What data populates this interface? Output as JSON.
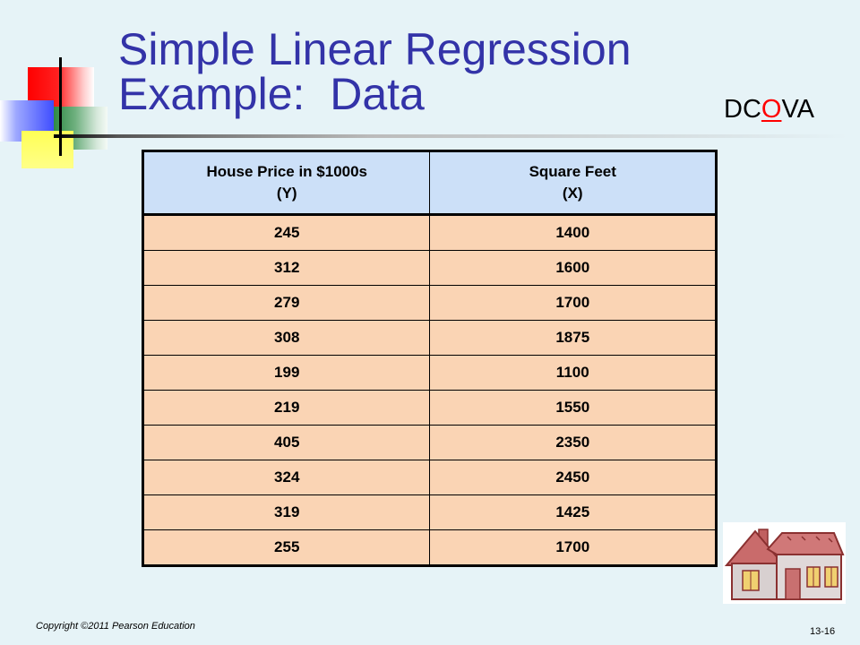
{
  "slide": {
    "title_line1": "Simple Linear Regression",
    "title_line2": "Example:  Data",
    "tag": {
      "prefix": "DC",
      "highlight": "O",
      "suffix": "VA"
    },
    "colors": {
      "title": "#3333a8",
      "background": "#e6f3f7",
      "header_fill": "#cce0f8",
      "cell_fill": "#fad4b4",
      "highlight": "#ff0000"
    }
  },
  "table": {
    "headers": [
      {
        "line1": "House Price in $1000s",
        "line2": "(Y)"
      },
      {
        "line1": "Square Feet",
        "line2": "(X)"
      }
    ],
    "rows": [
      [
        "245",
        "1400"
      ],
      [
        "312",
        "1600"
      ],
      [
        "279",
        "1700"
      ],
      [
        "308",
        "1875"
      ],
      [
        "199",
        "1100"
      ],
      [
        "219",
        "1550"
      ],
      [
        "405",
        "2350"
      ],
      [
        "324",
        "2450"
      ],
      [
        "319",
        "1425"
      ],
      [
        "255",
        "1700"
      ]
    ]
  },
  "illustration": {
    "icon": "house-icon"
  },
  "footer": {
    "copyright": "Copyright ©2011 Pearson Education",
    "page": "13-16"
  }
}
